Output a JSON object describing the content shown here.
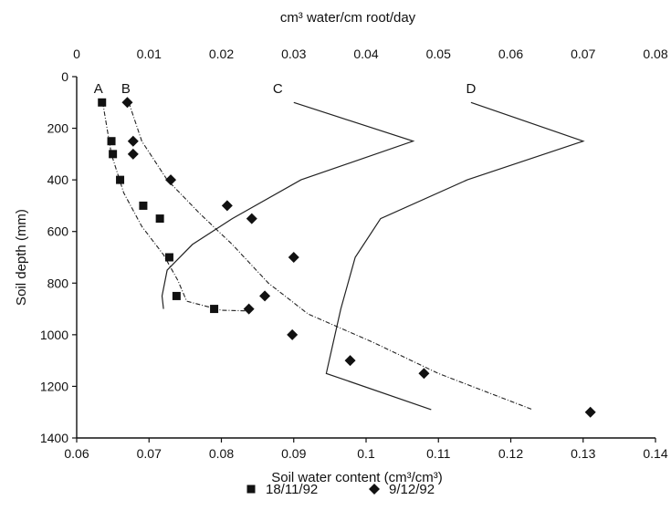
{
  "chart_data": {
    "type": "scatter",
    "title": "",
    "xlabel": "Soil water content (cm³/cm³)",
    "x2label": "cm³ water/cm root/day",
    "ylabel": "Soil depth (mm)",
    "xlim": [
      0.06,
      0.14
    ],
    "x2lim": [
      0,
      0.08
    ],
    "ylim": [
      0,
      1400
    ],
    "y_reversed": true,
    "x_ticks": [
      "0.06",
      "0.07",
      "0.08",
      "0.09",
      "0.1",
      "0.11",
      "0.12",
      "0.13",
      "0.14"
    ],
    "x2_ticks": [
      "0",
      "0.01",
      "0.02",
      "0.03",
      "0.04",
      "0.05",
      "0.06",
      "0.07",
      "0.08"
    ],
    "y_ticks": [
      "0",
      "200",
      "400",
      "600",
      "800",
      "1000",
      "1200",
      "1400"
    ],
    "grid": false,
    "legend_position": "bottom",
    "series": [
      {
        "name": "18/11/92",
        "marker": "square",
        "axis": "bottom",
        "points": [
          {
            "x": 0.0635,
            "y": 100
          },
          {
            "x": 0.0648,
            "y": 250
          },
          {
            "x": 0.065,
            "y": 300
          },
          {
            "x": 0.066,
            "y": 400
          },
          {
            "x": 0.0692,
            "y": 500
          },
          {
            "x": 0.0715,
            "y": 550
          },
          {
            "x": 0.0728,
            "y": 700
          },
          {
            "x": 0.0738,
            "y": 850
          },
          {
            "x": 0.079,
            "y": 900
          }
        ]
      },
      {
        "name": "9/12/92",
        "marker": "diamond",
        "axis": "bottom",
        "points": [
          {
            "x": 0.067,
            "y": 100
          },
          {
            "x": 0.0678,
            "y": 250
          },
          {
            "x": 0.0678,
            "y": 300
          },
          {
            "x": 0.073,
            "y": 400
          },
          {
            "x": 0.0808,
            "y": 500
          },
          {
            "x": 0.0842,
            "y": 550
          },
          {
            "x": 0.09,
            "y": 700
          },
          {
            "x": 0.086,
            "y": 850
          },
          {
            "x": 0.0838,
            "y": 900
          },
          {
            "x": 0.0898,
            "y": 1000
          },
          {
            "x": 0.0978,
            "y": 1100
          },
          {
            "x": 0.108,
            "y": 1150
          },
          {
            "x": 0.131,
            "y": 1300
          }
        ]
      }
    ],
    "curves": [
      {
        "label": "A",
        "style": "dashed",
        "axis": "bottom",
        "label_point": {
          "x": 0.063,
          "y": 50
        },
        "points": [
          {
            "x": 0.0636,
            "y": 100
          },
          {
            "x": 0.0648,
            "y": 300
          },
          {
            "x": 0.0665,
            "y": 450
          },
          {
            "x": 0.069,
            "y": 580
          },
          {
            "x": 0.072,
            "y": 690
          },
          {
            "x": 0.074,
            "y": 790
          },
          {
            "x": 0.0752,
            "y": 870
          },
          {
            "x": 0.08,
            "y": 905
          },
          {
            "x": 0.084,
            "y": 908
          }
        ]
      },
      {
        "label": "B",
        "style": "dashed",
        "axis": "bottom",
        "label_point": {
          "x": 0.0668,
          "y": 50
        },
        "points": [
          {
            "x": 0.0672,
            "y": 100
          },
          {
            "x": 0.069,
            "y": 250
          },
          {
            "x": 0.0725,
            "y": 400
          },
          {
            "x": 0.077,
            "y": 530
          },
          {
            "x": 0.0815,
            "y": 650
          },
          {
            "x": 0.0865,
            "y": 800
          },
          {
            "x": 0.092,
            "y": 920
          },
          {
            "x": 0.101,
            "y": 1030
          },
          {
            "x": 0.11,
            "y": 1150
          },
          {
            "x": 0.123,
            "y": 1290
          }
        ]
      },
      {
        "label": "C",
        "style": "solid",
        "axis": "top",
        "label_point": {
          "x": 0.0278,
          "y": 50
        },
        "points": [
          {
            "x": 0.03,
            "y": 100
          },
          {
            "x": 0.0465,
            "y": 250
          },
          {
            "x": 0.031,
            "y": 400
          },
          {
            "x": 0.0215,
            "y": 550
          },
          {
            "x": 0.016,
            "y": 650
          },
          {
            "x": 0.0125,
            "y": 750
          },
          {
            "x": 0.0118,
            "y": 850
          },
          {
            "x": 0.012,
            "y": 900
          }
        ]
      },
      {
        "label": "D",
        "style": "solid",
        "axis": "top",
        "label_point": {
          "x": 0.0545,
          "y": 50
        },
        "points": [
          {
            "x": 0.0545,
            "y": 100
          },
          {
            "x": 0.07,
            "y": 250
          },
          {
            "x": 0.054,
            "y": 400
          },
          {
            "x": 0.042,
            "y": 550
          },
          {
            "x": 0.0385,
            "y": 700
          },
          {
            "x": 0.0365,
            "y": 900
          },
          {
            "x": 0.0345,
            "y": 1150
          },
          {
            "x": 0.049,
            "y": 1290
          }
        ]
      }
    ]
  }
}
